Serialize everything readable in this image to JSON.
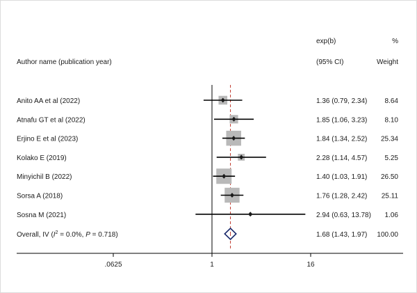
{
  "header": {
    "author_col": "Author name (publication year)",
    "effect_col_top": "exp(b)",
    "effect_col_bottom": "(95% CI)",
    "weight_col_top": "%",
    "weight_col_bottom": "Weight"
  },
  "colors": {
    "study_box": "#b9b9b9",
    "point": "#1a1a1a",
    "ci_line": "#000000",
    "overall_line": "#c0392b",
    "diamond": "#1a2a6c",
    "axis": "#000000",
    "background": "#ffffff",
    "frame_border": "#dcdcdc"
  },
  "chart_data": {
    "type": "forest",
    "x_scale": "log2",
    "xlim": [
      0.0625,
      16
    ],
    "null_line": 1,
    "pooled_estimate_line": 1.68,
    "x_ticks": [
      {
        "value": 0.0625,
        "label": ".0625"
      },
      {
        "value": 1,
        "label": "1"
      },
      {
        "value": 16,
        "label": "16"
      }
    ],
    "studies": [
      {
        "name": "Anito AA et al (2022)",
        "estimate": 1.36,
        "lower": 0.79,
        "upper": 2.34,
        "ci_text": "1.36 (0.79, 2.34)",
        "weight": 8.64,
        "weight_text": "8.64"
      },
      {
        "name": "Atnafu GT et al (2022)",
        "estimate": 1.85,
        "lower": 1.06,
        "upper": 3.23,
        "ci_text": "1.85 (1.06, 3.23)",
        "weight": 8.1,
        "weight_text": "8.10"
      },
      {
        "name": "Erjino E et al (2023)",
        "estimate": 1.84,
        "lower": 1.34,
        "upper": 2.52,
        "ci_text": "1.84 (1.34, 2.52)",
        "weight": 25.34,
        "weight_text": "25.34"
      },
      {
        "name": "Kolako E (2019)",
        "estimate": 2.28,
        "lower": 1.14,
        "upper": 4.57,
        "ci_text": "2.28 (1.14, 4.57)",
        "weight": 5.25,
        "weight_text": "5.25"
      },
      {
        "name": "Minyichil B (2022)",
        "estimate": 1.4,
        "lower": 1.03,
        "upper": 1.91,
        "ci_text": "1.40 (1.03, 1.91)",
        "weight": 26.5,
        "weight_text": "26.50"
      },
      {
        "name": "Sorsa A (2018)",
        "estimate": 1.76,
        "lower": 1.28,
        "upper": 2.42,
        "ci_text": "1.76 (1.28, 2.42)",
        "weight": 25.11,
        "weight_text": "25.11"
      },
      {
        "name": "Sosna M (2021)",
        "estimate": 2.94,
        "lower": 0.63,
        "upper": 13.78,
        "ci_text": "2.94 (0.63, 13.78)",
        "weight": 1.06,
        "weight_text": "1.06"
      }
    ],
    "overall": {
      "label_prefix": "Overall, IV (",
      "i_letter": "I",
      "i_sup": "2",
      "i_value": " = 0.0%, ",
      "p_letter": "P",
      "p_value": " = 0.718)",
      "estimate": 1.68,
      "lower": 1.43,
      "upper": 1.97,
      "ci_text": "1.68 (1.43, 1.97)",
      "weight_text": "100.00"
    }
  }
}
